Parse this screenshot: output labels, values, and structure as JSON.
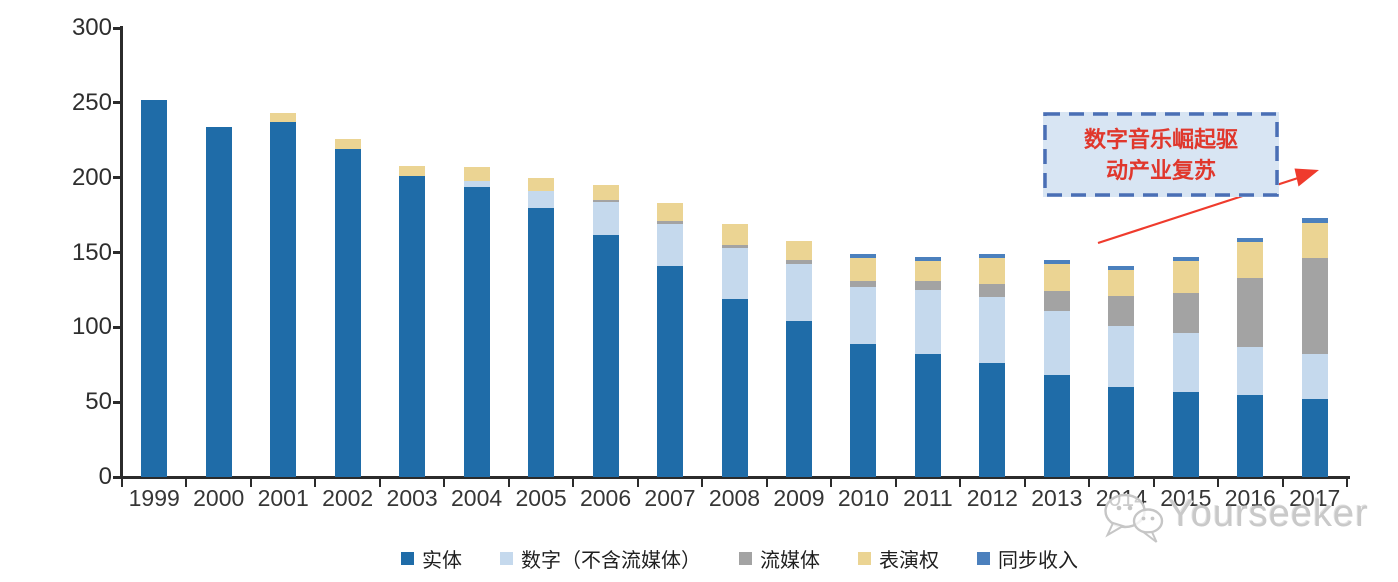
{
  "chart_data": {
    "type": "bar",
    "stacked": true,
    "categories": [
      "1999",
      "2000",
      "2001",
      "2002",
      "2003",
      "2004",
      "2005",
      "2006",
      "2007",
      "2008",
      "2009",
      "2010",
      "2011",
      "2012",
      "2013",
      "2014",
      "2015",
      "2016",
      "2017"
    ],
    "series": [
      {
        "name": "实体",
        "color": "#1f6ca8",
        "values": [
          252,
          234,
          237,
          219,
          201,
          194,
          180,
          162,
          141,
          119,
          104,
          89,
          82,
          76,
          68,
          60,
          57,
          55,
          52
        ]
      },
      {
        "name": "数字（不含流媒体）",
        "color": "#c5d9ed",
        "values": [
          0,
          0,
          0,
          0,
          0,
          4,
          11,
          22,
          28,
          34,
          38,
          38,
          43,
          44,
          43,
          41,
          39,
          32,
          30
        ]
      },
      {
        "name": "流媒体",
        "color": "#a3a3a3",
        "values": [
          0,
          0,
          0,
          0,
          0,
          0,
          0,
          1,
          2,
          2,
          3,
          4,
          6,
          9,
          13,
          20,
          27,
          46,
          64
        ]
      },
      {
        "name": "表演权",
        "color": "#ebd493",
        "values": [
          0,
          0,
          6,
          7,
          7,
          9,
          9,
          10,
          12,
          14,
          13,
          15,
          13,
          17,
          18,
          17,
          21,
          24,
          24
        ]
      },
      {
        "name": "同步收入",
        "color": "#4b80bd",
        "values": [
          0,
          0,
          0,
          0,
          0,
          0,
          0,
          0,
          0,
          0,
          0,
          3,
          3,
          3,
          3,
          3,
          3,
          3,
          3
        ]
      }
    ],
    "xlabel": "",
    "ylabel": "",
    "ylim": [
      0,
      300
    ],
    "y_ticks": [
      0,
      50,
      100,
      150,
      200,
      250,
      300
    ],
    "grid": false,
    "legend_position": "bottom"
  },
  "annotation": {
    "line1": "数字音乐崛起驱",
    "line2": "动产业复苏",
    "text_color": "#e0372c",
    "box_fill": "#d8e5f3",
    "box_border": "#4a6fb5",
    "arrow_color": "#ef3b2d"
  },
  "watermark": {
    "text": "Yourseeker"
  }
}
